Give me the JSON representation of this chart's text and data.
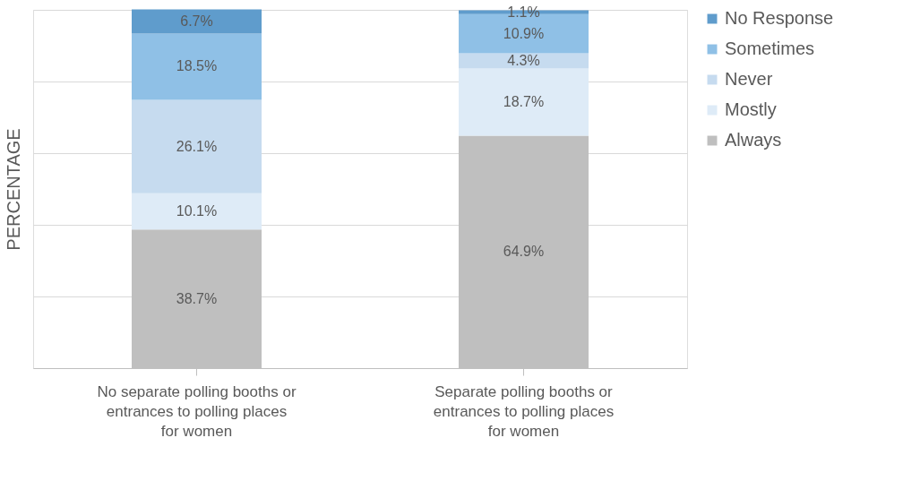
{
  "chart_data": {
    "type": "bar",
    "stacked": true,
    "ylabel": "PERCENTAGE",
    "categories": [
      "No separate polling booths or entrances to polling places for women",
      "Separate polling booths or entrances to polling places for women"
    ],
    "series": [
      {
        "name": "Always",
        "color": "#bfbfbf",
        "values": [
          38.7,
          64.9
        ],
        "value_labels": [
          "38.7%",
          "64.9%"
        ]
      },
      {
        "name": "Mostly",
        "color": "#deebf7",
        "values": [
          10.1,
          18.7
        ],
        "value_labels": [
          "10.1%",
          "18.7%"
        ]
      },
      {
        "name": "Never",
        "color": "#c6dbef",
        "values": [
          26.1,
          4.3
        ],
        "value_labels": [
          "26.1%",
          "4.3%"
        ]
      },
      {
        "name": "Sometimes",
        "color": "#8fc0e6",
        "values": [
          18.5,
          10.9
        ],
        "value_labels": [
          "18.5%",
          "10.9%"
        ]
      },
      {
        "name": "No Response",
        "color": "#5f9ccc",
        "values": [
          6.7,
          1.1
        ],
        "value_labels": [
          "6.7%",
          "1.1%"
        ]
      }
    ],
    "ylim": [
      0,
      100
    ],
    "yticks": [
      {
        "value": 0,
        "label": null
      },
      {
        "value": 20,
        "label": null
      },
      {
        "value": 40,
        "label": null
      },
      {
        "value": 60,
        "label": null
      },
      {
        "value": 80,
        "label": null
      },
      {
        "value": 100,
        "label": null
      }
    ],
    "grid": "y",
    "tick_labels": "x",
    "legend": "right"
  }
}
